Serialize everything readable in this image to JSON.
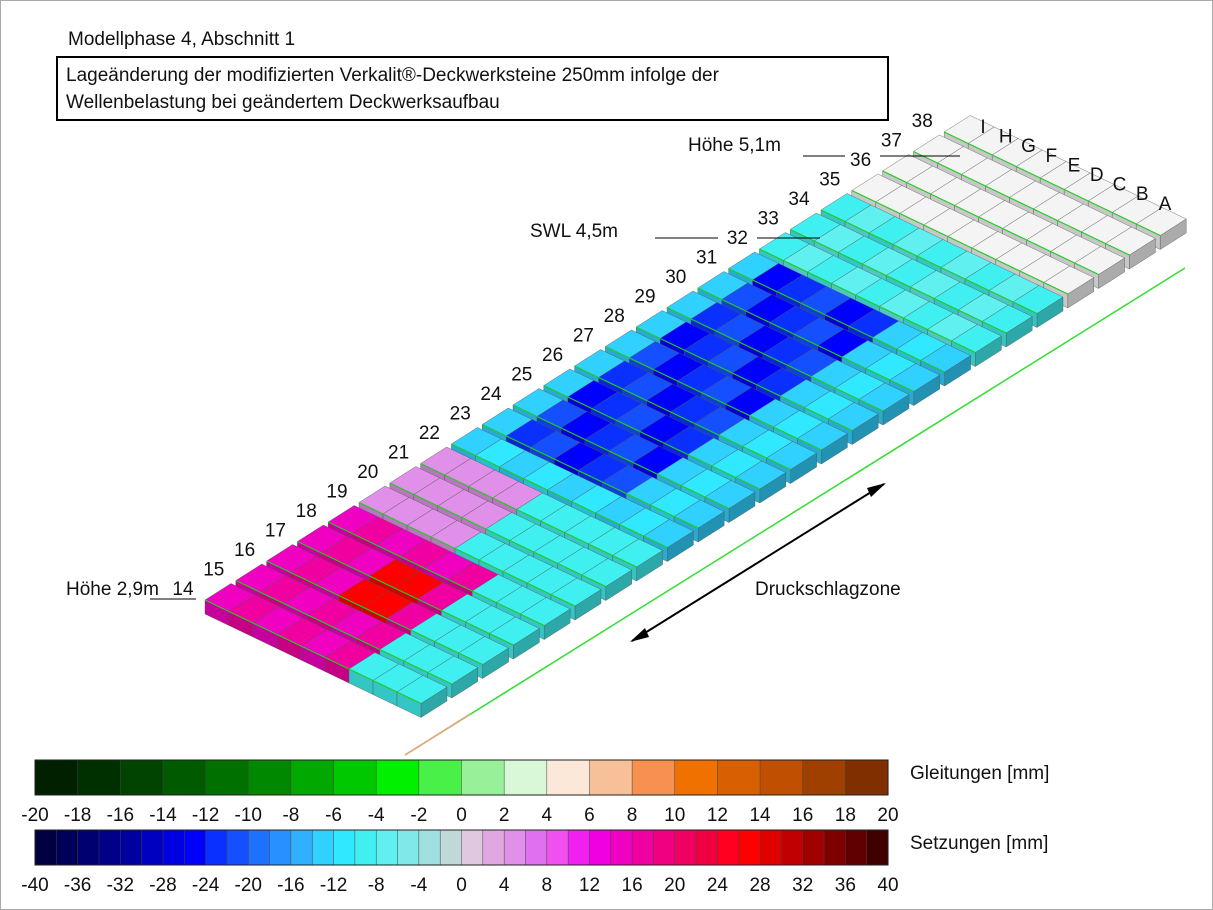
{
  "header": {
    "title": "Modellphase 4, Abschnitt 1",
    "description": [
      "Lageänderung der modifizierten Verkalit®-Deckwerksteine 250mm infolge der",
      "Wellenbelastung bei geändertem Deckwerksaufbau"
    ]
  },
  "row_labels": [
    "14",
    "15",
    "16",
    "17",
    "18",
    "19",
    "20",
    "21",
    "22",
    "23",
    "24",
    "25",
    "26",
    "27",
    "28",
    "29",
    "30",
    "31",
    "32",
    "33",
    "34",
    "35",
    "36",
    "37",
    "38"
  ],
  "column_labels": [
    "I",
    "H",
    "G",
    "F",
    "E",
    "D",
    "C",
    "B",
    "A"
  ],
  "annotations": {
    "height_top": "Höhe 5,1m",
    "swl": "SWL 4,5m",
    "height_bottom": "Höhe 2,9m",
    "zone": "Druckschlagzone"
  },
  "legends": [
    {
      "title": "Gleitungen [mm]",
      "colors": [
        "#002000",
        "#003000",
        "#004400",
        "#005a00",
        "#007000",
        "#008800",
        "#00a800",
        "#00c800",
        "#00f000",
        "#48f048",
        "#98f098",
        "#d8f8d8",
        "#fce8d8",
        "#f8c098",
        "#f89050",
        "#f07000",
        "#d86000",
        "#c05000",
        "#a04000",
        "#803000"
      ],
      "ticks": [
        -20,
        -18,
        -16,
        -14,
        -12,
        -10,
        -8,
        -6,
        -4,
        -2,
        0,
        2,
        4,
        6,
        8,
        10,
        12,
        14,
        16,
        18,
        20
      ]
    },
    {
      "title": "Setzungen [mm]",
      "colors": [
        "#000040",
        "#00005a",
        "#000070",
        "#000088",
        "#0000a0",
        "#0000c0",
        "#0000e0",
        "#0000ff",
        "#0a30ff",
        "#1450ff",
        "#1e70ff",
        "#2890ff",
        "#30b0ff",
        "#30d0ff",
        "#30e8ff",
        "#40f0f0",
        "#60f0f0",
        "#80e8e8",
        "#a0e0e0",
        "#c0d8d8",
        "#e0c8e0",
        "#e0a8e0",
        "#e090e8",
        "#e070f0",
        "#f050f0",
        "#f020f0",
        "#f000e0",
        "#f000c0",
        "#f000a0",
        "#f00080",
        "#f00060",
        "#f00040",
        "#ff0020",
        "#ff0000",
        "#e00000",
        "#c00000",
        "#a00000",
        "#800000",
        "#600000",
        "#400000"
      ],
      "ticks": [
        -40,
        -36,
        -32,
        -28,
        -24,
        -20,
        -16,
        -12,
        -8,
        -4,
        0,
        4,
        8,
        12,
        16,
        20,
        24,
        28,
        32,
        36,
        40
      ]
    }
  ]
}
